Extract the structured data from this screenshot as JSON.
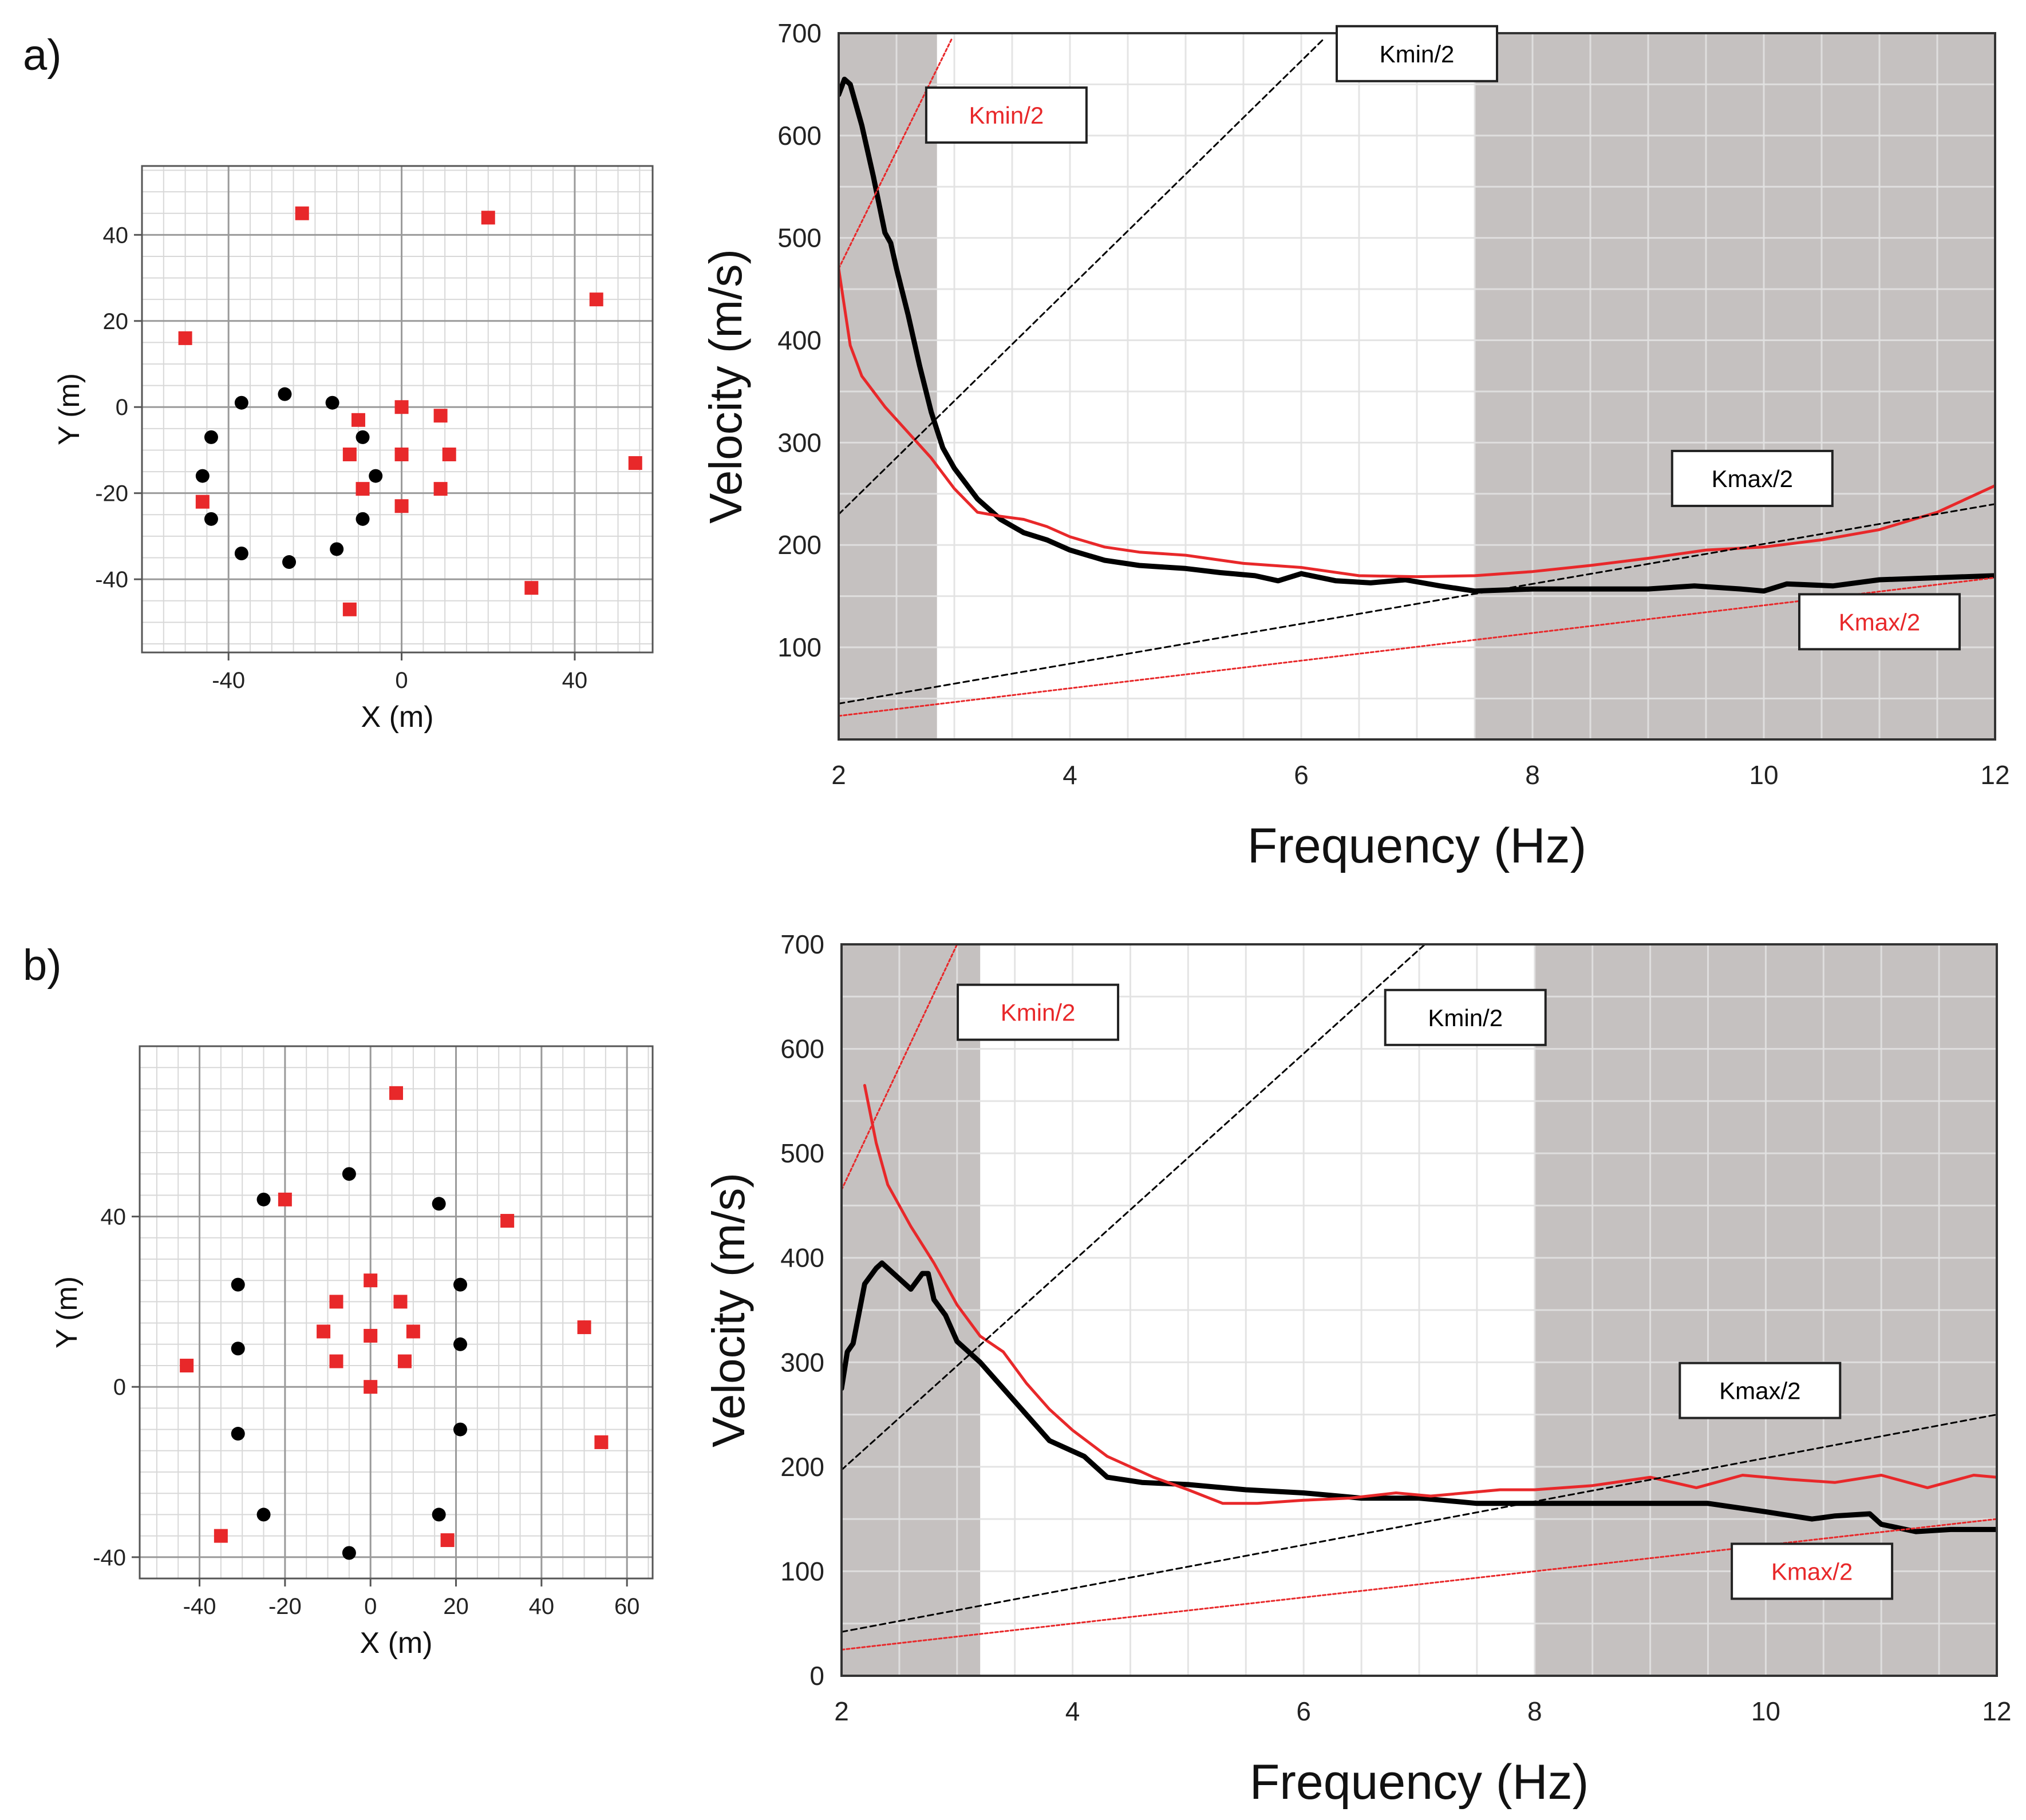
{
  "panels": [
    {
      "letter": "a)"
    },
    {
      "letter": "b)"
    }
  ],
  "chart_data": [
    {
      "id": "a-array",
      "type": "scatter",
      "xlabel": "X (m)",
      "ylabel": "Y (m)",
      "xlim": [
        -60,
        58
      ],
      "ylim": [
        -57,
        56
      ],
      "xticks": [
        -40,
        0,
        40
      ],
      "yticks": [
        -40,
        -20,
        0,
        20,
        40
      ],
      "grid": true,
      "series": [
        {
          "color": "#000000",
          "marker": "circle",
          "points": [
            [
              -37,
              1
            ],
            [
              -27,
              3
            ],
            [
              -16,
              1
            ],
            [
              -44,
              -7
            ],
            [
              -46,
              -16
            ],
            [
              -44,
              -26
            ],
            [
              -37,
              -34
            ],
            [
              -26,
              -36
            ],
            [
              -15,
              -33
            ],
            [
              -9,
              -7
            ],
            [
              -6,
              -16
            ],
            [
              -9,
              -26
            ]
          ]
        },
        {
          "color": "#e8282a",
          "marker": "square",
          "points": [
            [
              -23,
              45
            ],
            [
              20,
              44
            ],
            [
              45,
              25
            ],
            [
              -50,
              16
            ],
            [
              0,
              0
            ],
            [
              9,
              -2
            ],
            [
              -10,
              -3
            ],
            [
              -12,
              -11
            ],
            [
              0,
              -11
            ],
            [
              11,
              -11
            ],
            [
              -9,
              -19
            ],
            [
              9,
              -19
            ],
            [
              0,
              -23
            ],
            [
              -46,
              -22
            ],
            [
              54,
              -13
            ],
            [
              30,
              -42
            ],
            [
              -12,
              -47
            ]
          ]
        }
      ]
    },
    {
      "id": "a-dispersion",
      "type": "line",
      "xlabel": "Frequency (Hz)",
      "ylabel": "Velocity  (m/s)",
      "xlim": [
        2,
        12
      ],
      "ylim": [
        10,
        700
      ],
      "xticks": [
        2,
        4,
        6,
        8,
        10,
        12
      ],
      "yticks": [
        100,
        200,
        300,
        400,
        500,
        600,
        700
      ],
      "grid": true,
      "shaded_ranges": [
        [
          2,
          2.85
        ],
        [
          7.5,
          12
        ]
      ],
      "series": [
        {
          "color": "#000000",
          "style": "solid",
          "width": "thick",
          "x": [
            2,
            2.05,
            2.1,
            2.2,
            2.3,
            2.4,
            2.45,
            2.5,
            2.6,
            2.7,
            2.8,
            2.9,
            3.0,
            3.2,
            3.4,
            3.6,
            3.8,
            4.0,
            4.3,
            4.6,
            5.0,
            5.3,
            5.6,
            5.8,
            6.0,
            6.3,
            6.6,
            6.9,
            7.2,
            7.5,
            8.0,
            8.5,
            9.0,
            9.4,
            9.8,
            10.0,
            10.2,
            10.6,
            11.0,
            11.5,
            12.0
          ],
          "y": [
            640,
            655,
            650,
            610,
            560,
            505,
            495,
            470,
            425,
            375,
            330,
            295,
            275,
            245,
            225,
            212,
            205,
            195,
            185,
            180,
            177,
            173,
            170,
            165,
            172,
            165,
            163,
            166,
            160,
            155,
            157,
            157,
            157,
            160,
            157,
            155,
            162,
            160,
            166,
            168,
            170
          ]
        },
        {
          "color": "#e8282a",
          "style": "solid",
          "width": "medium",
          "x": [
            2,
            2.1,
            2.2,
            2.4,
            2.6,
            2.8,
            3.0,
            3.2,
            3.4,
            3.6,
            3.8,
            4.0,
            4.3,
            4.6,
            5.0,
            5.5,
            6.0,
            6.5,
            7.0,
            7.5,
            8.0,
            8.5,
            9.0,
            9.5,
            10.0,
            10.5,
            11.0,
            11.5,
            12.0
          ],
          "y": [
            470,
            395,
            365,
            335,
            310,
            285,
            255,
            232,
            228,
            225,
            218,
            208,
            198,
            193,
            190,
            182,
            178,
            170,
            169,
            170,
            174,
            180,
            187,
            195,
            198,
            205,
            215,
            232,
            258
          ]
        },
        {
          "name": "Kmin/2",
          "color": "#000000",
          "style": "dashed",
          "width": "thin",
          "x": [
            2,
            6.2
          ],
          "y": [
            230,
            695
          ]
        },
        {
          "name": "Kmax/2",
          "color": "#000000",
          "style": "dashed",
          "width": "thin",
          "x": [
            2,
            12
          ],
          "y": [
            45,
            240
          ]
        },
        {
          "name": "Kmin/2",
          "color": "#e8282a",
          "style": "dotted",
          "width": "thin",
          "x": [
            2,
            2.98
          ],
          "y": [
            470,
            695
          ]
        },
        {
          "name": "Kmax/2",
          "color": "#e8282a",
          "style": "dotted",
          "width": "thin",
          "x": [
            2,
            12
          ],
          "y": [
            33,
            168
          ]
        }
      ],
      "annotations": [
        {
          "text": "Kmin/2",
          "color": "#e8282a",
          "at": [
            3.45,
            620
          ]
        },
        {
          "text": "Kmin/2",
          "color": "#000000",
          "at": [
            7.0,
            680
          ]
        },
        {
          "text": "Kmax/2",
          "color": "#000000",
          "at": [
            9.9,
            265
          ]
        },
        {
          "text": "Kmax/2",
          "color": "#e8282a",
          "at": [
            11.0,
            125
          ]
        }
      ]
    },
    {
      "id": "b-array",
      "type": "scatter",
      "xlabel": "X (m)",
      "ylabel": "Y (m)",
      "xlim": [
        -54,
        66
      ],
      "ylim": [
        -45,
        80
      ],
      "xticks": [
        -40,
        -20,
        0,
        20,
        40,
        60
      ],
      "yticks": [
        -40,
        0,
        40
      ],
      "grid": true,
      "series": [
        {
          "color": "#000000",
          "marker": "circle",
          "points": [
            [
              -5,
              50
            ],
            [
              -25,
              44
            ],
            [
              16,
              43
            ],
            [
              -31,
              24
            ],
            [
              21,
              24
            ],
            [
              -31,
              9
            ],
            [
              21,
              10
            ],
            [
              -31,
              -11
            ],
            [
              21,
              -10
            ],
            [
              -25,
              -30
            ],
            [
              16,
              -30
            ],
            [
              -5,
              -39
            ]
          ]
        },
        {
          "color": "#e8282a",
          "marker": "square",
          "points": [
            [
              6,
              69
            ],
            [
              -20,
              44
            ],
            [
              32,
              39
            ],
            [
              0,
              25
            ],
            [
              -8,
              20
            ],
            [
              7,
              20
            ],
            [
              -11,
              13
            ],
            [
              0,
              12
            ],
            [
              10,
              13
            ],
            [
              -8,
              6
            ],
            [
              8,
              6
            ],
            [
              0,
              0
            ],
            [
              -43,
              5
            ],
            [
              50,
              14
            ],
            [
              54,
              -13
            ],
            [
              -35,
              -35
            ],
            [
              18,
              -36
            ]
          ]
        }
      ]
    },
    {
      "id": "b-dispersion",
      "type": "line",
      "xlabel": "Frequency (Hz)",
      "ylabel": "Velocity  (m/s)",
      "xlim": [
        2,
        12
      ],
      "ylim": [
        0,
        700
      ],
      "xticks": [
        2,
        4,
        6,
        8,
        10,
        12
      ],
      "yticks": [
        0,
        100,
        200,
        300,
        400,
        500,
        600,
        700
      ],
      "grid": true,
      "shaded_ranges": [
        [
          2,
          3.2
        ],
        [
          8,
          12
        ]
      ],
      "series": [
        {
          "color": "#000000",
          "style": "solid",
          "width": "thick",
          "x": [
            2,
            2.05,
            2.1,
            2.2,
            2.3,
            2.35,
            2.4,
            2.5,
            2.6,
            2.7,
            2.75,
            2.8,
            2.9,
            3.0,
            3.2,
            3.4,
            3.6,
            3.8,
            4.0,
            4.1,
            4.3,
            4.6,
            5.0,
            5.5,
            6.0,
            6.5,
            7.0,
            7.5,
            8.0,
            8.5,
            9.0,
            9.5,
            10.0,
            10.4,
            10.6,
            10.9,
            11.0,
            11.3,
            11.6,
            12.0
          ],
          "y": [
            275,
            310,
            318,
            375,
            390,
            395,
            390,
            380,
            370,
            385,
            385,
            360,
            345,
            320,
            300,
            275,
            250,
            225,
            215,
            210,
            190,
            185,
            183,
            178,
            175,
            170,
            170,
            165,
            165,
            165,
            165,
            165,
            157,
            150,
            153,
            155,
            145,
            138,
            140,
            140
          ]
        },
        {
          "color": "#e8282a",
          "style": "solid",
          "width": "medium",
          "x": [
            2.2,
            2.3,
            2.4,
            2.6,
            2.8,
            3.0,
            3.2,
            3.4,
            3.6,
            3.8,
            4.0,
            4.3,
            4.7,
            5.0,
            5.3,
            5.6,
            6.0,
            6.4,
            6.8,
            7.1,
            7.4,
            7.7,
            8.0,
            8.5,
            9.0,
            9.4,
            9.8,
            10.2,
            10.6,
            11.0,
            11.4,
            11.8,
            12.0
          ],
          "y": [
            565,
            510,
            470,
            430,
            395,
            355,
            325,
            310,
            280,
            255,
            235,
            210,
            190,
            178,
            165,
            165,
            168,
            170,
            175,
            172,
            175,
            178,
            178,
            182,
            190,
            180,
            192,
            188,
            185,
            192,
            180,
            192,
            190
          ]
        },
        {
          "name": "Kmin/2",
          "color": "#000000",
          "style": "dashed",
          "width": "thin",
          "x": [
            2,
            7.05
          ],
          "y": [
            197,
            700
          ]
        },
        {
          "name": "Kmax/2",
          "color": "#000000",
          "style": "dashed",
          "width": "thin",
          "x": [
            2,
            12
          ],
          "y": [
            42,
            250
          ]
        },
        {
          "name": "Kmin/2",
          "color": "#e8282a",
          "style": "dotted",
          "width": "thin",
          "x": [
            2,
            3.0
          ],
          "y": [
            465,
            700
          ]
        },
        {
          "name": "Kmax/2",
          "color": "#e8282a",
          "style": "dotted",
          "width": "thin",
          "x": [
            2,
            12
          ],
          "y": [
            25,
            150
          ]
        }
      ],
      "annotations": [
        {
          "text": "Kmin/2",
          "color": "#e8282a",
          "at": [
            3.7,
            635
          ]
        },
        {
          "text": "Kmin/2",
          "color": "#000000",
          "at": [
            7.4,
            630
          ]
        },
        {
          "text": "Kmax/2",
          "color": "#000000",
          "at": [
            9.95,
            273
          ]
        },
        {
          "text": "Kmax/2",
          "color": "#e8282a",
          "at": [
            10.4,
            100
          ]
        }
      ]
    }
  ]
}
